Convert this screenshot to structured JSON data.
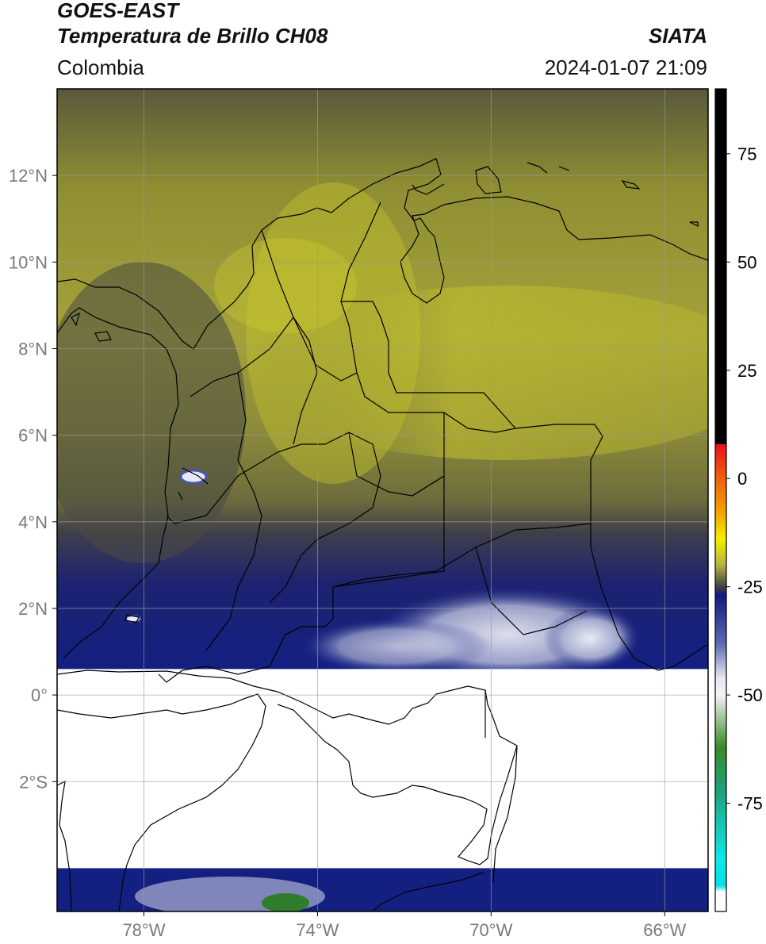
{
  "header": {
    "satellite": "GOES-EAST",
    "product": "Temperatura de Brillo CH08",
    "organization": "SIATA",
    "region": "Colombia",
    "timestamp": "2024-01-07 21:09"
  },
  "map": {
    "lon_range": [
      -80.0,
      -65.0
    ],
    "lat_range": [
      -5.0,
      14.0
    ],
    "lat_ticks": [
      {
        "value": 12,
        "label": "12°N"
      },
      {
        "value": 10,
        "label": "10°N"
      },
      {
        "value": 8,
        "label": "8°N"
      },
      {
        "value": 6,
        "label": "6°N"
      },
      {
        "value": 4,
        "label": "4°N"
      },
      {
        "value": 2,
        "label": "2°N"
      },
      {
        "value": 0,
        "label": "0°"
      },
      {
        "value": -2,
        "label": "2°S"
      }
    ],
    "lon_ticks": [
      {
        "value": -78,
        "label": "78°W"
      },
      {
        "value": -74,
        "label": "74°W"
      },
      {
        "value": -70,
        "label": "70°W"
      },
      {
        "value": -66,
        "label": "66°W"
      }
    ],
    "no_data_band_lat": [
      -4.0,
      0.6
    ],
    "grid": true
  },
  "colorbar": {
    "range": [
      -100,
      90
    ],
    "ticks": [
      {
        "value": 75,
        "label": "75"
      },
      {
        "value": 50,
        "label": "50"
      },
      {
        "value": 25,
        "label": "25"
      },
      {
        "value": 0,
        "label": "0"
      },
      {
        "value": -25,
        "label": "-25"
      },
      {
        "value": -50,
        "label": "-50"
      },
      {
        "value": -75,
        "label": "-75"
      }
    ],
    "stops": [
      {
        "value": 90,
        "color": "#000000"
      },
      {
        "value": 8,
        "color": "#000000"
      },
      {
        "value": 7.9,
        "color": "#e8101a"
      },
      {
        "value": 0,
        "color": "#f06010"
      },
      {
        "value": -8,
        "color": "#f4a400"
      },
      {
        "value": -14,
        "color": "#f4ee00"
      },
      {
        "value": -20,
        "color": "#b5b440"
      },
      {
        "value": -25,
        "color": "#404040"
      },
      {
        "value": -27,
        "color": "#121a80"
      },
      {
        "value": -38,
        "color": "#5c68b0"
      },
      {
        "value": -46,
        "color": "#e4e6f2"
      },
      {
        "value": -50,
        "color": "#f4f4f2"
      },
      {
        "value": -62,
        "color": "#3a8a28"
      },
      {
        "value": -72,
        "color": "#1fa07a"
      },
      {
        "value": -88,
        "color": "#10e8e8"
      },
      {
        "value": -94,
        "color": "#00e0e0"
      },
      {
        "value": -95.5,
        "color": "#ffffff"
      },
      {
        "value": -100,
        "color": "#ffffff"
      }
    ]
  },
  "colors": {
    "frame": "#000000",
    "grid": "#9a9a9a",
    "tick_label": "#7a7a7a",
    "coast": "#000000"
  }
}
